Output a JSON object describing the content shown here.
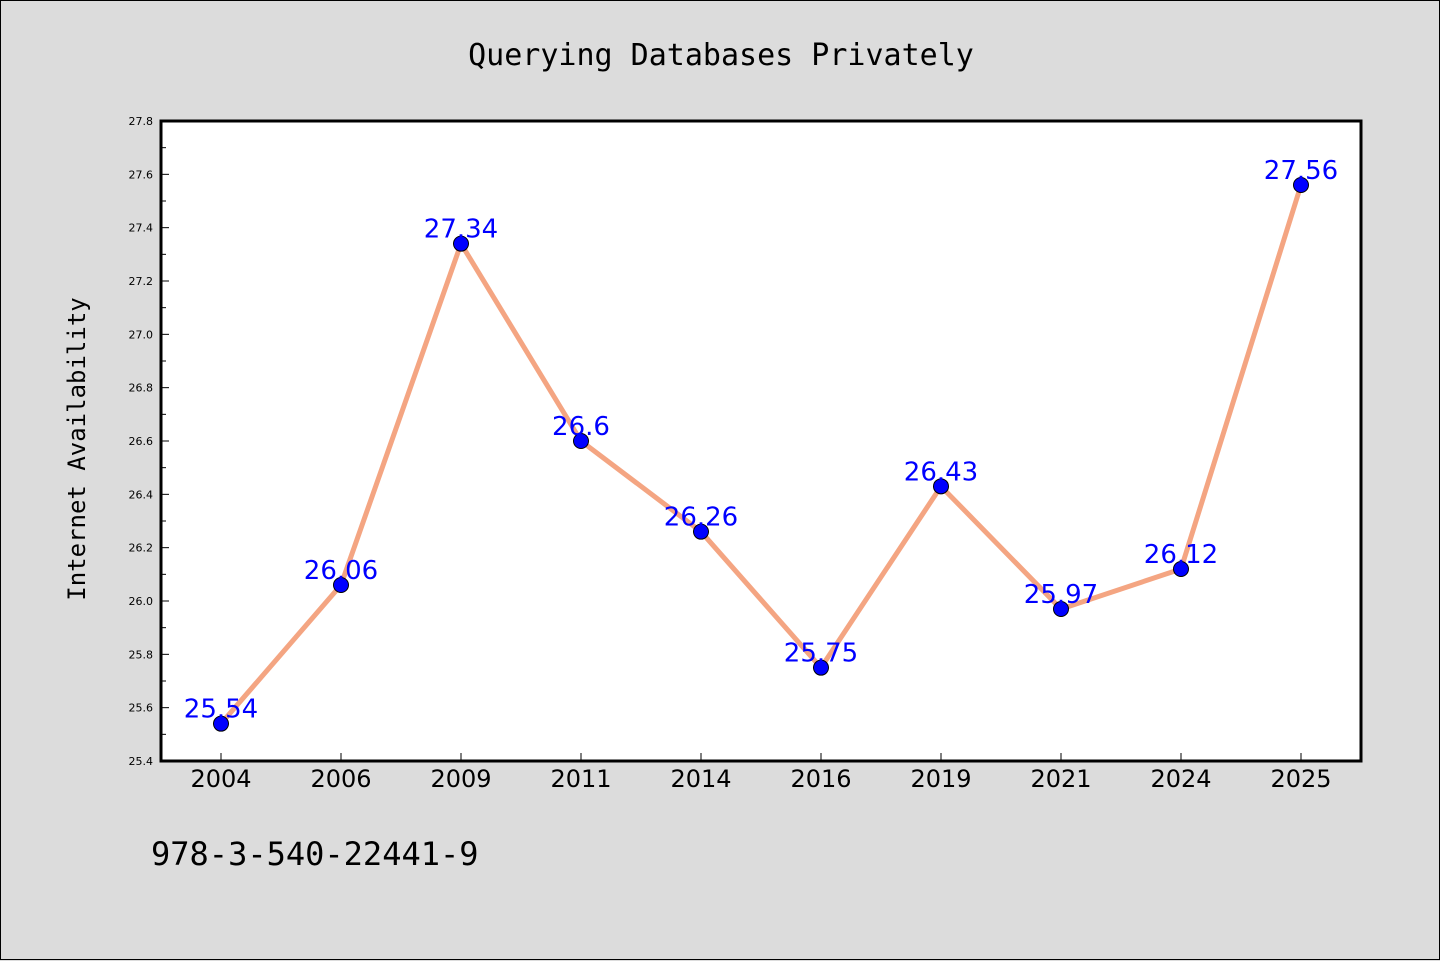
{
  "figure": {
    "background": "#dcdcdc",
    "footer_text": "978-3-540-22441-9"
  },
  "chart_data": {
    "type": "line",
    "title": "Querying Databases Privately",
    "xlabel": "",
    "ylabel": "Internet Availability",
    "categories": [
      "2004",
      "2006",
      "2009",
      "2011",
      "2014",
      "2016",
      "2019",
      "2021",
      "2024",
      "2025"
    ],
    "series": [
      {
        "values": [
          25.54,
          26.06,
          27.34,
          26.6,
          26.26,
          25.75,
          26.43,
          25.97,
          26.12,
          27.56
        ],
        "data_labels": [
          "25.54",
          "26.06",
          "27.34",
          "26.6",
          "26.26",
          "25.75",
          "26.43",
          "25.97",
          "26.12",
          "27.56"
        ],
        "line_color": "#f4a582",
        "marker_color": "#0000ff",
        "label_color": "#0000ff"
      }
    ],
    "ylim": [
      25.4,
      27.8
    ],
    "yticks": [
      "25.4",
      "25.6",
      "25.8",
      "26.0",
      "26.2",
      "26.4",
      "26.6",
      "26.8",
      "27.0",
      "27.2",
      "27.4",
      "27.6",
      "27.8"
    ],
    "grid": false,
    "legend": "none",
    "plot_background": "#ffffff"
  }
}
